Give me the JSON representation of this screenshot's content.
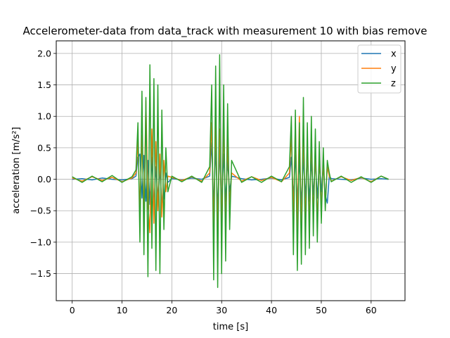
{
  "chart_data": {
    "type": "line",
    "title": "Accelerometer-data from data_track with measurement 10 with bias remove",
    "xlabel": "time [s]",
    "ylabel": "acceleration [m/s²]",
    "xlim": [
      -3.2,
      66.8
    ],
    "ylim": [
      -1.93,
      2.2
    ],
    "xticks": [
      0,
      10,
      20,
      30,
      40,
      50,
      60
    ],
    "yticks": [
      -1.5,
      -1.0,
      -0.5,
      0.0,
      0.5,
      1.0,
      1.5,
      2.0
    ],
    "xtick_labels": [
      "0",
      "10",
      "20",
      "30",
      "40",
      "50",
      "60"
    ],
    "ytick_labels": [
      "−1.5",
      "−1.0",
      "−0.5",
      "0.0",
      "0.5",
      "1.0",
      "1.5",
      "2.0"
    ],
    "grid": true,
    "legend_position": "top-right",
    "series": [
      {
        "name": "x",
        "color": "#1f77b4",
        "x": [
          0,
          2,
          4,
          6,
          8,
          10,
          12,
          12.8,
          13.2,
          13.6,
          14.0,
          14.4,
          14.8,
          15.2,
          15.6,
          16.0,
          16.4,
          16.8,
          17.2,
          17.6,
          18.0,
          18.4,
          18.8,
          19.2,
          20,
          22,
          24,
          26,
          27.6,
          28.0,
          28.4,
          28.8,
          29.2,
          29.6,
          30.0,
          30.4,
          30.8,
          31.2,
          31.6,
          32.0,
          34,
          36,
          38,
          40,
          42,
          43.6,
          44.0,
          44.4,
          44.8,
          45.2,
          45.6,
          46.0,
          46.4,
          46.8,
          47.2,
          47.6,
          48.0,
          48.4,
          48.8,
          49.2,
          49.6,
          50.0,
          50.4,
          50.8,
          51.2,
          51.6,
          52,
          54,
          56,
          58,
          60,
          62,
          63.5
        ],
        "y": [
          0.0,
          0.01,
          -0.01,
          0.02,
          0.0,
          -0.01,
          0.01,
          0.05,
          0.35,
          0.4,
          -0.3,
          0.38,
          -0.35,
          0.3,
          -0.4,
          0.35,
          -0.45,
          0.2,
          -0.3,
          0.15,
          -0.4,
          -0.3,
          0.1,
          -0.05,
          0.01,
          -0.01,
          0.02,
          0.0,
          0.05,
          0.58,
          -0.45,
          0.5,
          -0.5,
          0.45,
          -0.4,
          0.4,
          -0.35,
          0.3,
          -0.2,
          0.05,
          0.01,
          -0.01,
          0.0,
          0.02,
          -0.01,
          0.03,
          0.35,
          -0.3,
          0.38,
          -0.35,
          0.3,
          -0.4,
          0.35,
          -0.3,
          0.4,
          -0.35,
          0.3,
          -0.25,
          0.3,
          -0.3,
          0.25,
          -0.2,
          0.2,
          -0.25,
          -0.38,
          0.05,
          0.01,
          0.0,
          -0.01,
          0.02,
          0.0,
          0.01,
          0.0
        ]
      },
      {
        "name": "y",
        "color": "#ff7f0e",
        "x": [
          0,
          2,
          4,
          6,
          8,
          10,
          12,
          12.8,
          13.2,
          13.6,
          14.0,
          14.4,
          14.8,
          15.2,
          15.6,
          16.0,
          16.4,
          16.8,
          17.2,
          17.6,
          18.0,
          18.4,
          18.8,
          19.2,
          20,
          22,
          24,
          26,
          27.6,
          28.0,
          28.4,
          28.8,
          29.2,
          29.6,
          30.0,
          30.4,
          30.8,
          31.2,
          31.6,
          32.0,
          34,
          36,
          38,
          40,
          42,
          43.6,
          44.0,
          44.4,
          44.8,
          45.2,
          45.6,
          46.0,
          46.4,
          46.8,
          47.2,
          47.6,
          48.0,
          48.4,
          48.8,
          49.2,
          49.6,
          50.0,
          50.4,
          50.8,
          51.2,
          51.6,
          52,
          54,
          56,
          58,
          60,
          62,
          63.5
        ],
        "y": [
          0.02,
          -0.03,
          0.04,
          -0.02,
          0.03,
          -0.04,
          0.02,
          0.1,
          0.6,
          -0.5,
          0.7,
          -0.6,
          1.25,
          -0.4,
          -0.85,
          0.8,
          -0.7,
          0.6,
          -0.5,
          0.4,
          -0.6,
          0.3,
          -0.2,
          0.05,
          0.03,
          -0.02,
          0.04,
          -0.03,
          0.1,
          0.9,
          -0.8,
          1.0,
          -0.9,
          0.8,
          -0.7,
          0.9,
          -0.8,
          0.6,
          -0.4,
          0.1,
          -0.03,
          0.04,
          -0.02,
          0.03,
          -0.04,
          0.1,
          0.7,
          -0.6,
          0.9,
          -0.8,
          1.0,
          -0.9,
          0.8,
          -0.7,
          0.6,
          -0.8,
          0.7,
          -0.6,
          0.5,
          -0.7,
          0.4,
          -0.5,
          0.3,
          -0.4,
          0.2,
          0.05,
          -0.03,
          0.04,
          -0.02,
          0.03,
          -0.04,
          0.05,
          0.0
        ]
      },
      {
        "name": "z",
        "color": "#2ca02c",
        "x": [
          0,
          2,
          4,
          6,
          8,
          10,
          12,
          12.8,
          13.2,
          13.6,
          14.0,
          14.4,
          14.8,
          15.2,
          15.6,
          16.0,
          16.4,
          16.8,
          17.2,
          17.6,
          18.0,
          18.4,
          18.8,
          19.2,
          20,
          22,
          24,
          26,
          27.6,
          28.0,
          28.4,
          28.8,
          29.2,
          29.6,
          30.0,
          30.4,
          30.8,
          31.2,
          31.6,
          32.0,
          34,
          36,
          38,
          40,
          42,
          43.6,
          44.0,
          44.4,
          44.8,
          45.2,
          45.6,
          46.0,
          46.4,
          46.8,
          47.2,
          47.6,
          48.0,
          48.4,
          48.8,
          49.2,
          49.6,
          50.0,
          50.4,
          50.8,
          51.2,
          51.6,
          52,
          54,
          56,
          58,
          60,
          62,
          63.5
        ],
        "y": [
          0.04,
          -0.05,
          0.05,
          -0.04,
          0.06,
          -0.05,
          0.04,
          0.15,
          0.9,
          -1.0,
          1.4,
          -1.2,
          1.3,
          -1.55,
          1.82,
          -1.1,
          1.6,
          -1.45,
          1.5,
          -1.5,
          1.1,
          -0.8,
          0.5,
          -0.2,
          0.05,
          -0.04,
          0.05,
          -0.05,
          0.2,
          1.5,
          -1.6,
          1.8,
          -1.72,
          1.98,
          -1.5,
          1.5,
          -1.3,
          1.2,
          -0.8,
          0.3,
          -0.05,
          0.04,
          -0.05,
          0.05,
          -0.04,
          0.2,
          1.0,
          -1.2,
          1.1,
          -1.45,
          0.9,
          -1.35,
          1.3,
          -1.2,
          0.9,
          -1.1,
          1.0,
          -0.9,
          0.8,
          -1.0,
          0.6,
          -0.7,
          0.5,
          -0.5,
          0.3,
          0.1,
          -0.04,
          0.05,
          -0.05,
          0.04,
          -0.05,
          0.05,
          0.0
        ]
      }
    ]
  }
}
